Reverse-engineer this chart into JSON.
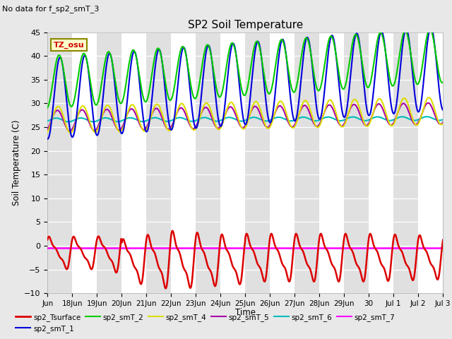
{
  "title": "SP2 Soil Temperature",
  "subtitle": "No data for f_sp2_smT_3",
  "ylabel": "Soil Temperature (C)",
  "xlabel": "Time",
  "tz_label": "TZ_osu",
  "x_tick_labels": [
    "Jun",
    "18Jun",
    "19Jun",
    "20Jun",
    "21Jun",
    "22Jun",
    "23Jun",
    "24Jun",
    "25Jun",
    "26Jun",
    "27Jun",
    "28Jun",
    "29Jun",
    "30",
    "Jul 1",
    "Jul 2",
    "Jul 3"
  ],
  "ylim": [
    -10,
    45
  ],
  "yticks": [
    -10,
    -5,
    0,
    5,
    10,
    15,
    20,
    25,
    30,
    35,
    40,
    45
  ],
  "bg_color": "#e8e8e8",
  "plot_bg_color": "#ffffff",
  "stripe_color": "#e0e0e0",
  "series": {
    "sp2_Tsurface": {
      "color": "#dd0000",
      "lw": 1.8
    },
    "sp2_smT_1": {
      "color": "#0000dd",
      "lw": 1.5
    },
    "sp2_smT_2": {
      "color": "#00cc00",
      "lw": 1.5
    },
    "sp2_smT_4": {
      "color": "#dddd00",
      "lw": 1.5
    },
    "sp2_smT_5": {
      "color": "#aa00aa",
      "lw": 1.5
    },
    "sp2_smT_6": {
      "color": "#00bbbb",
      "lw": 1.5
    },
    "sp2_smT_7": {
      "color": "#ff00ff",
      "lw": 1.8
    }
  },
  "n_days": 16,
  "smT7_value": -0.5
}
